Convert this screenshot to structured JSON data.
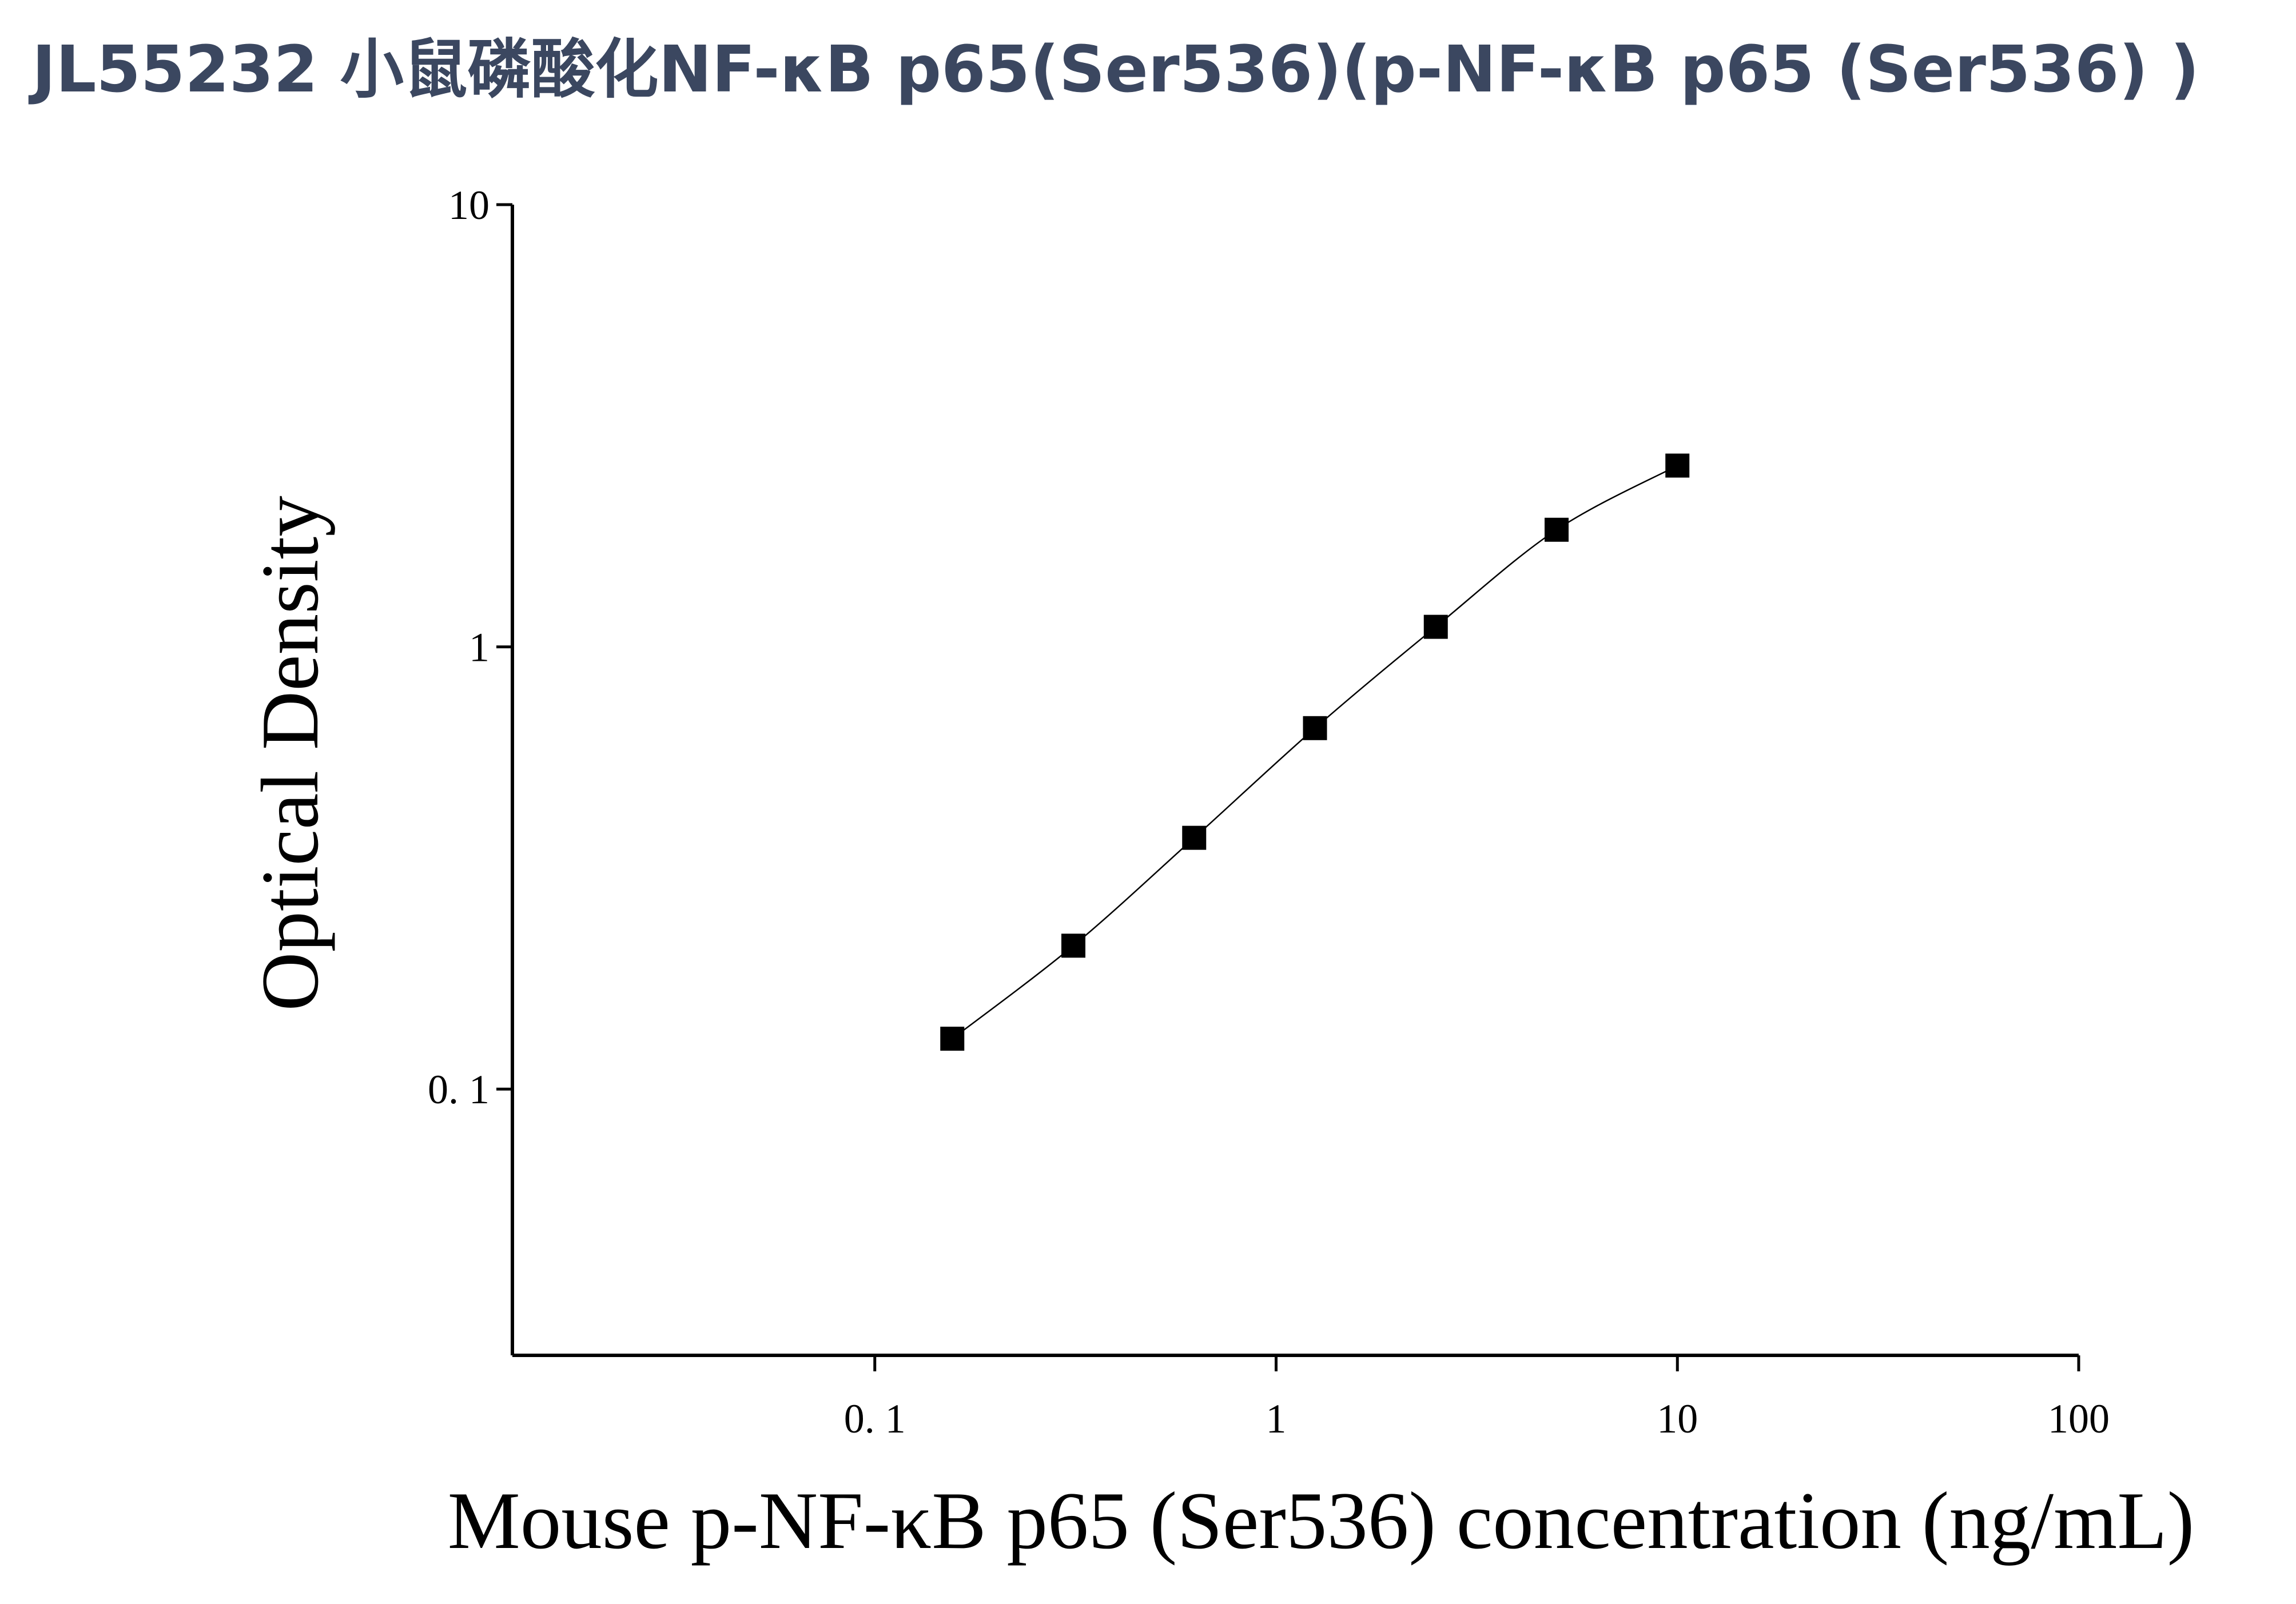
{
  "chart_data": {
    "type": "scatter",
    "title": "JL55232 小鼠磷酸化NF-κB p65(Ser536)(p-NF-κB p65 (Ser536) )",
    "x_label": "Mouse p-NF-κB p65 (Ser536) concentration (ng/mL)",
    "y_label": "Optical Density",
    "xscale": "log",
    "yscale": "log",
    "xlim": [
      0.0125,
      100
    ],
    "ylim": [
      0.025,
      10
    ],
    "xticks": [
      {
        "value": 0.1,
        "label": "0. 1"
      },
      1,
      10,
      100
    ],
    "yticks": [
      {
        "value": 0.1,
        "label": "0. 1"
      },
      1,
      10
    ],
    "series": [
      {
        "color": "#000000",
        "x": [
          0.156,
          0.3125,
          0.625,
          1.25,
          2.5,
          5,
          10
        ],
        "values": [
          0.13,
          0.211,
          0.37,
          0.655,
          1.11,
          1.84,
          2.57
        ]
      }
    ]
  }
}
